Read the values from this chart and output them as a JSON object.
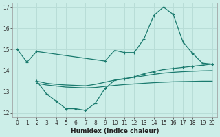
{
  "xlabel": "Humidex (Indice chaleur)",
  "bg_color": "#cceee8",
  "grid_color": "#b8ddd7",
  "line_color": "#1a7a6e",
  "xlim": [
    -0.5,
    20.5
  ],
  "ylim": [
    11.8,
    17.2
  ],
  "yticks": [
    12,
    13,
    14,
    15,
    16,
    17
  ],
  "xticks": [
    0,
    1,
    2,
    3,
    4,
    5,
    6,
    7,
    8,
    9,
    10,
    11,
    12,
    13,
    14,
    15,
    16,
    17,
    18,
    19,
    20
  ],
  "series_peak_x": [
    0,
    1,
    2,
    9,
    10,
    11,
    12,
    13,
    14,
    15,
    16,
    17,
    18,
    19,
    20
  ],
  "series_peak_y": [
    15.0,
    14.4,
    14.9,
    14.45,
    14.95,
    14.85,
    14.85,
    15.5,
    16.6,
    17.0,
    16.65,
    15.35,
    14.8,
    14.35,
    14.3
  ],
  "series_dip_x": [
    2,
    3,
    4,
    5,
    6,
    7,
    8,
    9,
    10,
    11,
    12,
    13,
    14,
    15,
    16,
    17,
    18,
    19,
    20
  ],
  "series_dip_y": [
    13.5,
    12.9,
    12.55,
    12.2,
    12.2,
    12.12,
    12.45,
    13.15,
    13.55,
    13.6,
    13.7,
    13.85,
    13.95,
    14.05,
    14.1,
    14.15,
    14.2,
    14.25,
    14.3
  ],
  "series_mid_x": [
    2,
    3,
    4,
    5,
    6,
    7,
    8,
    9,
    10,
    11,
    12,
    13,
    14,
    15,
    16,
    17,
    18,
    19,
    20
  ],
  "series_mid_y": [
    13.5,
    13.4,
    13.35,
    13.32,
    13.3,
    13.28,
    13.35,
    13.45,
    13.55,
    13.62,
    13.68,
    13.75,
    13.82,
    13.88,
    13.92,
    13.95,
    13.97,
    13.99,
    14.0
  ],
  "series_flat_x": [
    2,
    3,
    4,
    5,
    6,
    7,
    8,
    9,
    10,
    11,
    12,
    13,
    14,
    15,
    16,
    17,
    18,
    19,
    20
  ],
  "series_flat_y": [
    13.4,
    13.32,
    13.27,
    13.22,
    13.2,
    13.18,
    13.2,
    13.25,
    13.3,
    13.34,
    13.37,
    13.4,
    13.43,
    13.45,
    13.47,
    13.48,
    13.49,
    13.5,
    13.5
  ]
}
